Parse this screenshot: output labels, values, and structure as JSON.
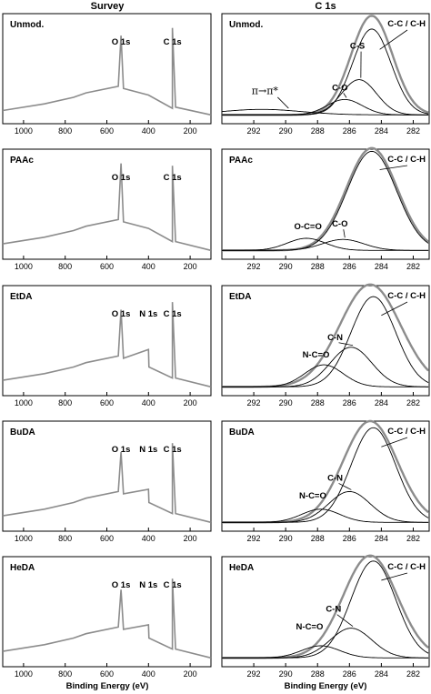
{
  "columns": [
    {
      "title": "Survey",
      "xlabel": "Binding Energy (eV)"
    },
    {
      "title": "C 1s",
      "xlabel": "Binding Energy (eV)"
    }
  ],
  "colors": {
    "envelope": "#8c8c8c",
    "fit": "#000000",
    "frame": "#000000"
  },
  "chart_data": [
    {
      "type": "line",
      "panel": "survey",
      "sample": "Unmod.",
      "xlim": [
        1100,
        100
      ],
      "xticks": [
        1000,
        800,
        600,
        400,
        200
      ],
      "annotations": [
        {
          "text": "O 1s",
          "x": 532
        },
        {
          "text": "C 1s",
          "x": 285
        }
      ],
      "series": [
        {
          "values": [
            [
              1100,
              0.88
            ],
            [
              900,
              0.82
            ],
            [
              760,
              0.76
            ],
            [
              700,
              0.72
            ],
            [
              545,
              0.66
            ],
            [
              532,
              0.2
            ],
            [
              520,
              0.68
            ],
            [
              400,
              0.74
            ],
            [
              285,
              0.86
            ],
            [
              285,
              0.13
            ],
            [
              270,
              0.85
            ],
            [
              100,
              0.92
            ]
          ]
        }
      ]
    },
    {
      "type": "line",
      "panel": "c1s",
      "sample": "Unmod.",
      "xlim": [
        294,
        281
      ],
      "xticks": [
        292,
        290,
        288,
        286,
        284,
        282
      ],
      "annotations": [
        {
          "text": "π→π*",
          "x": 291.3
        },
        {
          "text": "C-O",
          "x": 286.6
        },
        {
          "text": "C-S",
          "x": 285.5
        },
        {
          "text": "C-C / C-H",
          "x": 284.5
        }
      ],
      "series": [
        {
          "kind": "envelope",
          "center": 284.6,
          "amp": 0.9,
          "width": 1.3
        },
        {
          "kind": "component",
          "label": "C-C / C-H",
          "center": 284.6,
          "amp": 0.78,
          "width": 1.2
        },
        {
          "kind": "component",
          "label": "C-S",
          "center": 285.4,
          "amp": 0.32,
          "width": 1.1
        },
        {
          "kind": "component",
          "label": "C-O",
          "center": 286.3,
          "amp": 0.14,
          "width": 1.1
        },
        {
          "kind": "component",
          "label": "π→π*",
          "center": 291.5,
          "amp": 0.05,
          "width": 2.5
        }
      ]
    },
    {
      "type": "line",
      "panel": "survey",
      "sample": "PAAc",
      "xlim": [
        1100,
        100
      ],
      "xticks": [
        1000,
        800,
        600,
        400,
        200
      ],
      "annotations": [
        {
          "text": "O 1s",
          "x": 532
        },
        {
          "text": "C 1s",
          "x": 285
        }
      ],
      "series": [
        {
          "values": [
            [
              1100,
              0.86
            ],
            [
              900,
              0.8
            ],
            [
              760,
              0.74
            ],
            [
              700,
              0.7
            ],
            [
              545,
              0.64
            ],
            [
              532,
              0.13
            ],
            [
              520,
              0.66
            ],
            [
              400,
              0.72
            ],
            [
              285,
              0.84
            ],
            [
              285,
              0.15
            ],
            [
              270,
              0.84
            ],
            [
              100,
              0.92
            ]
          ]
        }
      ]
    },
    {
      "type": "line",
      "panel": "c1s",
      "sample": "PAAc",
      "xlim": [
        294,
        281
      ],
      "xticks": [
        292,
        290,
        288,
        286,
        284,
        282
      ],
      "annotations": [
        {
          "text": "O-C=O",
          "x": 288.6
        },
        {
          "text": "C-O",
          "x": 286.6
        },
        {
          "text": "C-C / C-H",
          "x": 284.5
        }
      ],
      "series": [
        {
          "kind": "envelope",
          "center": 284.6,
          "amp": 0.93,
          "width": 1.6
        },
        {
          "kind": "component",
          "label": "C-C / C-H",
          "center": 284.6,
          "amp": 0.9,
          "width": 1.55
        },
        {
          "kind": "component",
          "label": "C-O",
          "center": 286.4,
          "amp": 0.1,
          "width": 1.3
        },
        {
          "kind": "component",
          "label": "O-C=O",
          "center": 288.7,
          "amp": 0.11,
          "width": 1.2
        }
      ]
    },
    {
      "type": "line",
      "panel": "survey",
      "sample": "EtDA",
      "xlim": [
        1100,
        100
      ],
      "xticks": [
        1000,
        800,
        600,
        400,
        200
      ],
      "annotations": [
        {
          "text": "O 1s",
          "x": 532
        },
        {
          "text": "N 1s",
          "x": 400
        },
        {
          "text": "C 1s",
          "x": 285
        }
      ],
      "series": [
        {
          "values": [
            [
              1100,
              0.86
            ],
            [
              900,
              0.8
            ],
            [
              760,
              0.74
            ],
            [
              700,
              0.7
            ],
            [
              545,
              0.64
            ],
            [
              532,
              0.22
            ],
            [
              520,
              0.66
            ],
            [
              400,
              0.58
            ],
            [
              398,
              0.74
            ],
            [
              285,
              0.84
            ],
            [
              285,
              0.15
            ],
            [
              270,
              0.84
            ],
            [
              100,
              0.92
            ]
          ]
        }
      ]
    },
    {
      "type": "line",
      "panel": "c1s",
      "sample": "EtDA",
      "xlim": [
        294,
        281
      ],
      "xticks": [
        292,
        290,
        288,
        286,
        284,
        282
      ],
      "annotations": [
        {
          "text": "N-C=O",
          "x": 288.1
        },
        {
          "text": "C-N",
          "x": 286.9
        },
        {
          "text": "C-C / C-H",
          "x": 284.5
        }
      ],
      "series": [
        {
          "kind": "envelope",
          "center": 284.7,
          "amp": 0.93,
          "width": 1.9
        },
        {
          "kind": "component",
          "label": "C-C / C-H",
          "center": 284.5,
          "amp": 0.82,
          "width": 1.4
        },
        {
          "kind": "component",
          "label": "C-N",
          "center": 285.9,
          "amp": 0.36,
          "width": 1.3
        },
        {
          "kind": "component",
          "label": "N-C=O",
          "center": 287.6,
          "amp": 0.2,
          "width": 1.2
        }
      ]
    },
    {
      "type": "line",
      "panel": "survey",
      "sample": "BuDA",
      "xlim": [
        1100,
        100
      ],
      "xticks": [
        1000,
        800,
        600,
        400,
        200
      ],
      "annotations": [
        {
          "text": "O 1s",
          "x": 532
        },
        {
          "text": "N 1s",
          "x": 400
        },
        {
          "text": "C 1s",
          "x": 285
        }
      ],
      "series": [
        {
          "values": [
            [
              1100,
              0.86
            ],
            [
              900,
              0.8
            ],
            [
              760,
              0.74
            ],
            [
              700,
              0.7
            ],
            [
              545,
              0.64
            ],
            [
              532,
              0.28
            ],
            [
              520,
              0.66
            ],
            [
              400,
              0.62
            ],
            [
              398,
              0.74
            ],
            [
              285,
              0.84
            ],
            [
              285,
              0.2
            ],
            [
              270,
              0.84
            ],
            [
              100,
              0.92
            ]
          ]
        }
      ]
    },
    {
      "type": "line",
      "panel": "c1s",
      "sample": "BuDA",
      "xlim": [
        294,
        281
      ],
      "xticks": [
        292,
        290,
        288,
        286,
        284,
        282
      ],
      "annotations": [
        {
          "text": "N-C=O",
          "x": 288.3
        },
        {
          "text": "C-N",
          "x": 286.9
        },
        {
          "text": "C-C / C-H",
          "x": 284.5
        }
      ],
      "series": [
        {
          "kind": "envelope",
          "center": 284.7,
          "amp": 0.92,
          "width": 1.7
        },
        {
          "kind": "component",
          "label": "C-C / C-H",
          "center": 284.5,
          "amp": 0.86,
          "width": 1.4
        },
        {
          "kind": "component",
          "label": "C-N",
          "center": 286.0,
          "amp": 0.28,
          "width": 1.3
        },
        {
          "kind": "component",
          "label": "N-C=O",
          "center": 287.8,
          "amp": 0.12,
          "width": 1.2
        }
      ]
    },
    {
      "type": "line",
      "panel": "survey",
      "sample": "HeDA",
      "xlim": [
        1100,
        100
      ],
      "xticks": [
        1000,
        800,
        600,
        400,
        200
      ],
      "annotations": [
        {
          "text": "O 1s",
          "x": 532
        },
        {
          "text": "N 1s",
          "x": 400
        },
        {
          "text": "C 1s",
          "x": 285
        }
      ],
      "series": [
        {
          "values": [
            [
              1100,
              0.86
            ],
            [
              900,
              0.8
            ],
            [
              760,
              0.74
            ],
            [
              700,
              0.7
            ],
            [
              545,
              0.64
            ],
            [
              532,
              0.3
            ],
            [
              520,
              0.66
            ],
            [
              400,
              0.62
            ],
            [
              398,
              0.74
            ],
            [
              285,
              0.84
            ],
            [
              285,
              0.2
            ],
            [
              270,
              0.84
            ],
            [
              100,
              0.92
            ]
          ]
        }
      ]
    },
    {
      "type": "line",
      "panel": "c1s",
      "sample": "HeDA",
      "xlim": [
        294,
        281
      ],
      "xticks": [
        292,
        290,
        288,
        286,
        284,
        282
      ],
      "annotations": [
        {
          "text": "N-C=O",
          "x": 288.5
        },
        {
          "text": "C-N",
          "x": 287.0
        },
        {
          "text": "C-C / C-H",
          "x": 284.5
        }
      ],
      "series": [
        {
          "kind": "envelope",
          "center": 284.7,
          "amp": 0.93,
          "width": 1.7
        },
        {
          "kind": "component",
          "label": "C-C / C-H",
          "center": 284.5,
          "amp": 0.88,
          "width": 1.4
        },
        {
          "kind": "component",
          "label": "C-N",
          "center": 285.9,
          "amp": 0.27,
          "width": 1.3
        },
        {
          "kind": "component",
          "label": "N-C=O",
          "center": 287.8,
          "amp": 0.11,
          "width": 1.2
        }
      ]
    }
  ]
}
